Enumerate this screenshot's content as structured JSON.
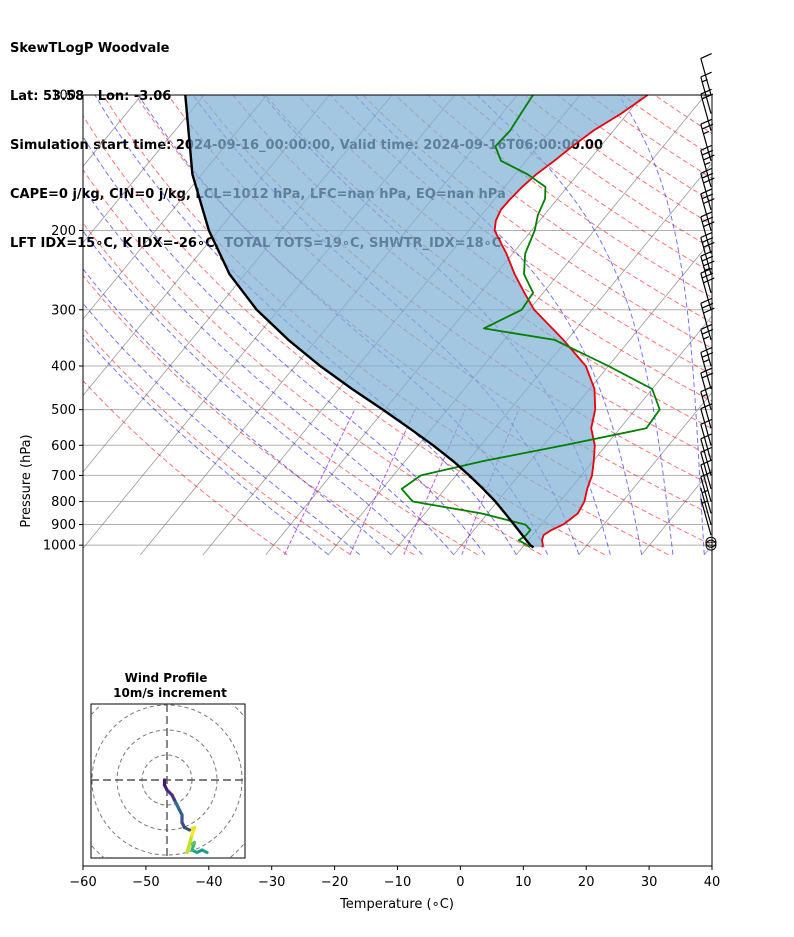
{
  "header": {
    "line1": "SkewTLogP Woodvale",
    "line2": "Lat: 53.58   Lon: -3.06",
    "line3": "Simulation start time: 2024-09-16_00:00:00, Valid time: 2024-09-16T06:00:00.00",
    "line4": "CAPE=0 j/kg, CIN=0 j/kg, LCL=1012 hPa, LFC=nan hPa, EQ=nan hPa",
    "line5": "LFT IDX=15∘C, K IDX=-26∘C, TOTAL TOTS=19∘C, SHWTR_IDX=18∘C"
  },
  "axes": {
    "xlabel": "Temperature (∘C)",
    "ylabel": "Pressure (hPa)",
    "x_ticks": [
      "−60",
      "−50",
      "−40",
      "−30",
      "−20",
      "−10",
      "0",
      "10",
      "20",
      "30",
      "40"
    ],
    "y_ticks": [
      "100",
      "200",
      "300",
      "400",
      "500",
      "600",
      "700",
      "800",
      "900",
      "1000"
    ]
  },
  "hodograph": {
    "title": "Wind Profile",
    "subtitle": "10m/s increment"
  },
  "colors": {
    "temperature": "#e8000b",
    "dewpoint": "#008000",
    "parcel": "#000000",
    "shade": "#7fb0d6",
    "dry_adiabat": "#ff0000",
    "moist_adiabat": "#0000ff",
    "mixing_ratio": "#9400d3",
    "isotherm": "#808080"
  },
  "chart_data": {
    "type": "line",
    "x_axis": "temperature_C",
    "y_axis": "pressure_hPa_log",
    "xlim": [
      -60,
      40
    ],
    "ylim": [
      1050,
      100
    ],
    "grid": true,
    "series": [
      {
        "key": "temperature",
        "pressure": [
          1010,
          1000,
          975,
          950,
          925,
          900,
          875,
          850,
          800,
          750,
          700,
          650,
          600,
          550,
          500,
          450,
          400,
          350,
          300,
          275,
          250,
          225,
          200,
          190,
          180,
          170,
          160,
          150,
          140,
          130,
          120,
          110,
          100
        ],
        "values": [
          13.1,
          13.0,
          12.2,
          11.8,
          12.4,
          13.5,
          14.0,
          14.4,
          13.9,
          12.7,
          11.7,
          10.1,
          8.2,
          5.4,
          3.6,
          0.8,
          -3.6,
          -10.6,
          -19.2,
          -23.0,
          -27.0,
          -31.0,
          -35.9,
          -37.0,
          -37.6,
          -37.5,
          -37.2,
          -36.6,
          -35.5,
          -34.5,
          -33.2,
          -31.0,
          -29.2
        ]
      },
      {
        "key": "dewpoint",
        "pressure": [
          1010,
          1000,
          975,
          950,
          925,
          900,
          850,
          800,
          750,
          700,
          650,
          600,
          550,
          500,
          450,
          400,
          350,
          330,
          300,
          275,
          250,
          225,
          200,
          185,
          170,
          160,
          150,
          140,
          130,
          120,
          110,
          100
        ],
        "values": [
          11.2,
          10.5,
          8.5,
          9.0,
          9.0,
          7.5,
          -1.0,
          -13.5,
          -16.9,
          -15.6,
          -7.4,
          3.3,
          14.2,
          13.9,
          10.0,
          0.0,
          -12.0,
          -24.8,
          -21.2,
          -21.6,
          -25.5,
          -28.0,
          -29.5,
          -31.0,
          -32.0,
          -33.5,
          -38.0,
          -44.0,
          -46.8,
          -46.5,
          -47.0,
          -47.5
        ]
      },
      {
        "key": "parcel",
        "pressure": [
          1012,
          1000,
          950,
          900,
          850,
          800,
          750,
          700,
          650,
          600,
          550,
          500,
          450,
          400,
          350,
          300,
          250,
          200,
          150,
          100
        ],
        "values": [
          11.8,
          11.0,
          8.4,
          5.7,
          2.8,
          -0.3,
          -3.9,
          -7.9,
          -12.4,
          -17.6,
          -23.6,
          -30.3,
          -37.9,
          -46.0,
          -54.5,
          -63.5,
          -72.5,
          -81.5,
          -91.5,
          -103.0
        ]
      }
    ],
    "wind_barbs": [
      {
        "p": 1000,
        "speed": "calm"
      },
      {
        "p": 985,
        "speed": "calm"
      },
      {
        "p": 950,
        "speed": 5
      },
      {
        "p": 900,
        "speed": 5
      },
      {
        "p": 850,
        "speed": 10
      },
      {
        "p": 800,
        "speed": 10
      },
      {
        "p": 750,
        "speed": 10
      },
      {
        "p": 700,
        "speed": 10
      },
      {
        "p": 650,
        "speed": 10
      },
      {
        "p": 600,
        "speed": 10
      },
      {
        "p": 550,
        "speed": 15
      },
      {
        "p": 500,
        "speed": 20
      },
      {
        "p": 450,
        "speed": 25
      },
      {
        "p": 400,
        "speed": 25
      },
      {
        "p": 350,
        "speed": 30
      },
      {
        "p": 300,
        "speed": 30
      },
      {
        "p": 275,
        "speed": 35
      },
      {
        "p": 250,
        "speed": 30
      },
      {
        "p": 225,
        "speed": 30
      },
      {
        "p": 200,
        "speed": 30
      },
      {
        "p": 180,
        "speed": 30
      },
      {
        "p": 160,
        "speed": 35
      },
      {
        "p": 140,
        "speed": 25
      },
      {
        "p": 120,
        "speed": 20
      },
      {
        "p": 110,
        "speed": 15
      },
      {
        "p": 100,
        "speed": 10
      }
    ],
    "hodograph_rings_ms": [
      10,
      20,
      30,
      40
    ]
  }
}
